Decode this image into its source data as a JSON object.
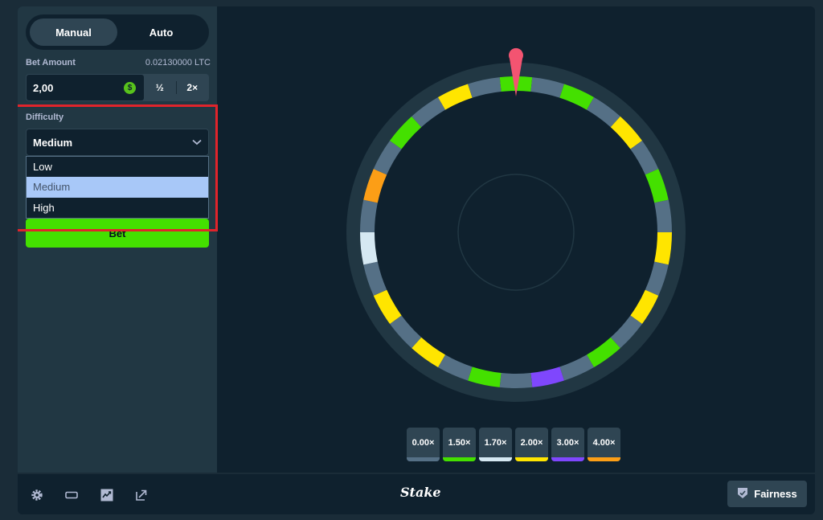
{
  "sidebar": {
    "modes": [
      {
        "label": "Manual",
        "active": true
      },
      {
        "label": "Auto",
        "active": false
      }
    ],
    "bet_amount_label": "Bet Amount",
    "bet_amount_crypto": "0.02130000 LTC",
    "bet_amount_value": "2,00",
    "currency_icon": "$",
    "half_label": "½",
    "double_label": "2×",
    "difficulty_label": "Difficulty",
    "difficulty_selected": "Medium",
    "difficulty_options": [
      "Low",
      "Medium",
      "High"
    ],
    "bet_button_label": "Bet"
  },
  "wheel": {
    "segments_total": 30,
    "segment_colors": {
      "gray": "#557086",
      "green": "#44e000",
      "yellow": "#ffe500",
      "white": "#d5e8f2",
      "orange": "#fc9e16",
      "purple": "#7f47fd"
    },
    "colored_segments": [
      "green",
      "green",
      "yellow",
      "green",
      "yellow",
      "yellow",
      "green",
      "purple",
      "green",
      "yellow",
      "yellow",
      "white",
      "orange",
      "green",
      "yellow"
    ],
    "pointer_color": "#f35471"
  },
  "payouts": [
    {
      "label": "0.00×",
      "color": "#557086"
    },
    {
      "label": "1.50×",
      "color": "#44e000"
    },
    {
      "label": "1.70×",
      "color": "#d5e8f2"
    },
    {
      "label": "2.00×",
      "color": "#ffe500"
    },
    {
      "label": "3.00×",
      "color": "#7f47fd"
    },
    {
      "label": "4.00×",
      "color": "#fc9e16"
    }
  ],
  "footer": {
    "logo": "Stake",
    "fairness_label": "Fairness",
    "icons": [
      "gear-icon",
      "theatre-mode-icon",
      "live-stats-icon",
      "popout-icon"
    ]
  }
}
